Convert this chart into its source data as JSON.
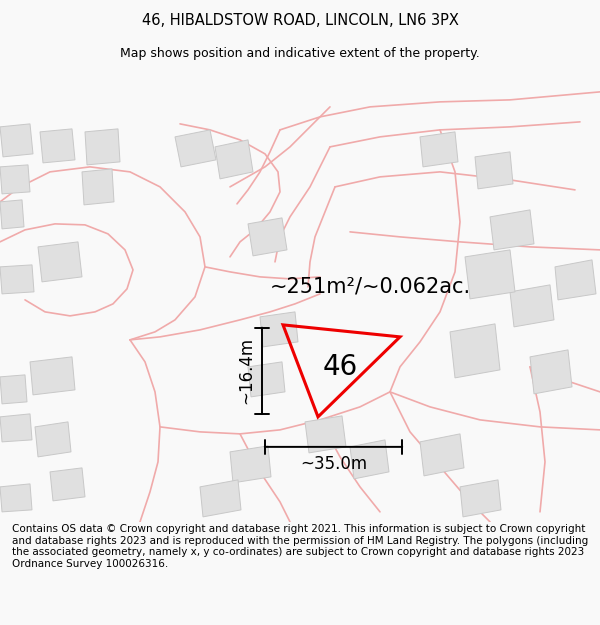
{
  "title_line1": "46, HIBALDSTOW ROAD, LINCOLN, LN6 3PX",
  "title_line2": "Map shows position and indicative extent of the property.",
  "footer_text": "Contains OS data © Crown copyright and database right 2021. This information is subject to Crown copyright and database rights 2023 and is reproduced with the permission of HM Land Registry. The polygons (including the associated geometry, namely x, y co-ordinates) are subject to Crown copyright and database rights 2023 Ordnance Survey 100026316.",
  "area_label": "~251m²/~0.062ac.",
  "property_number": "46",
  "dim_width": "~35.0m",
  "dim_height": "~16.4m",
  "bg_color": "#f9f9f9",
  "map_bg": "#ffffff",
  "road_color": "#f0aaaa",
  "building_color": "#e0e0e0",
  "building_edge_color": "#c8c8c8",
  "property_color": "#ee0000",
  "title_fontsize": 10.5,
  "subtitle_fontsize": 9.0,
  "footer_fontsize": 7.5,
  "label_fontsize": 15,
  "number_fontsize": 20,
  "dim_fontsize": 12
}
